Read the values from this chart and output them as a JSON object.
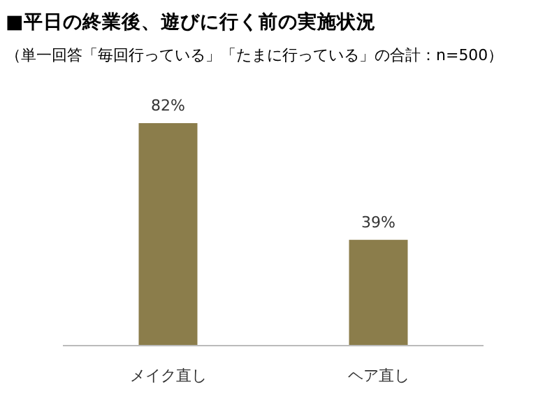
{
  "chart_data": {
    "type": "bar",
    "title": "■平日の終業後、遊びに行く前の実施状況",
    "subtitle": "（単一回答「毎回行っている」「たまに行っている」の合計：n=500）",
    "categories": [
      "メイク直し",
      "ヘア直し"
    ],
    "values": [
      82,
      39
    ],
    "value_labels": [
      "82%",
      "39%"
    ],
    "color": "#8b7d4b"
  }
}
